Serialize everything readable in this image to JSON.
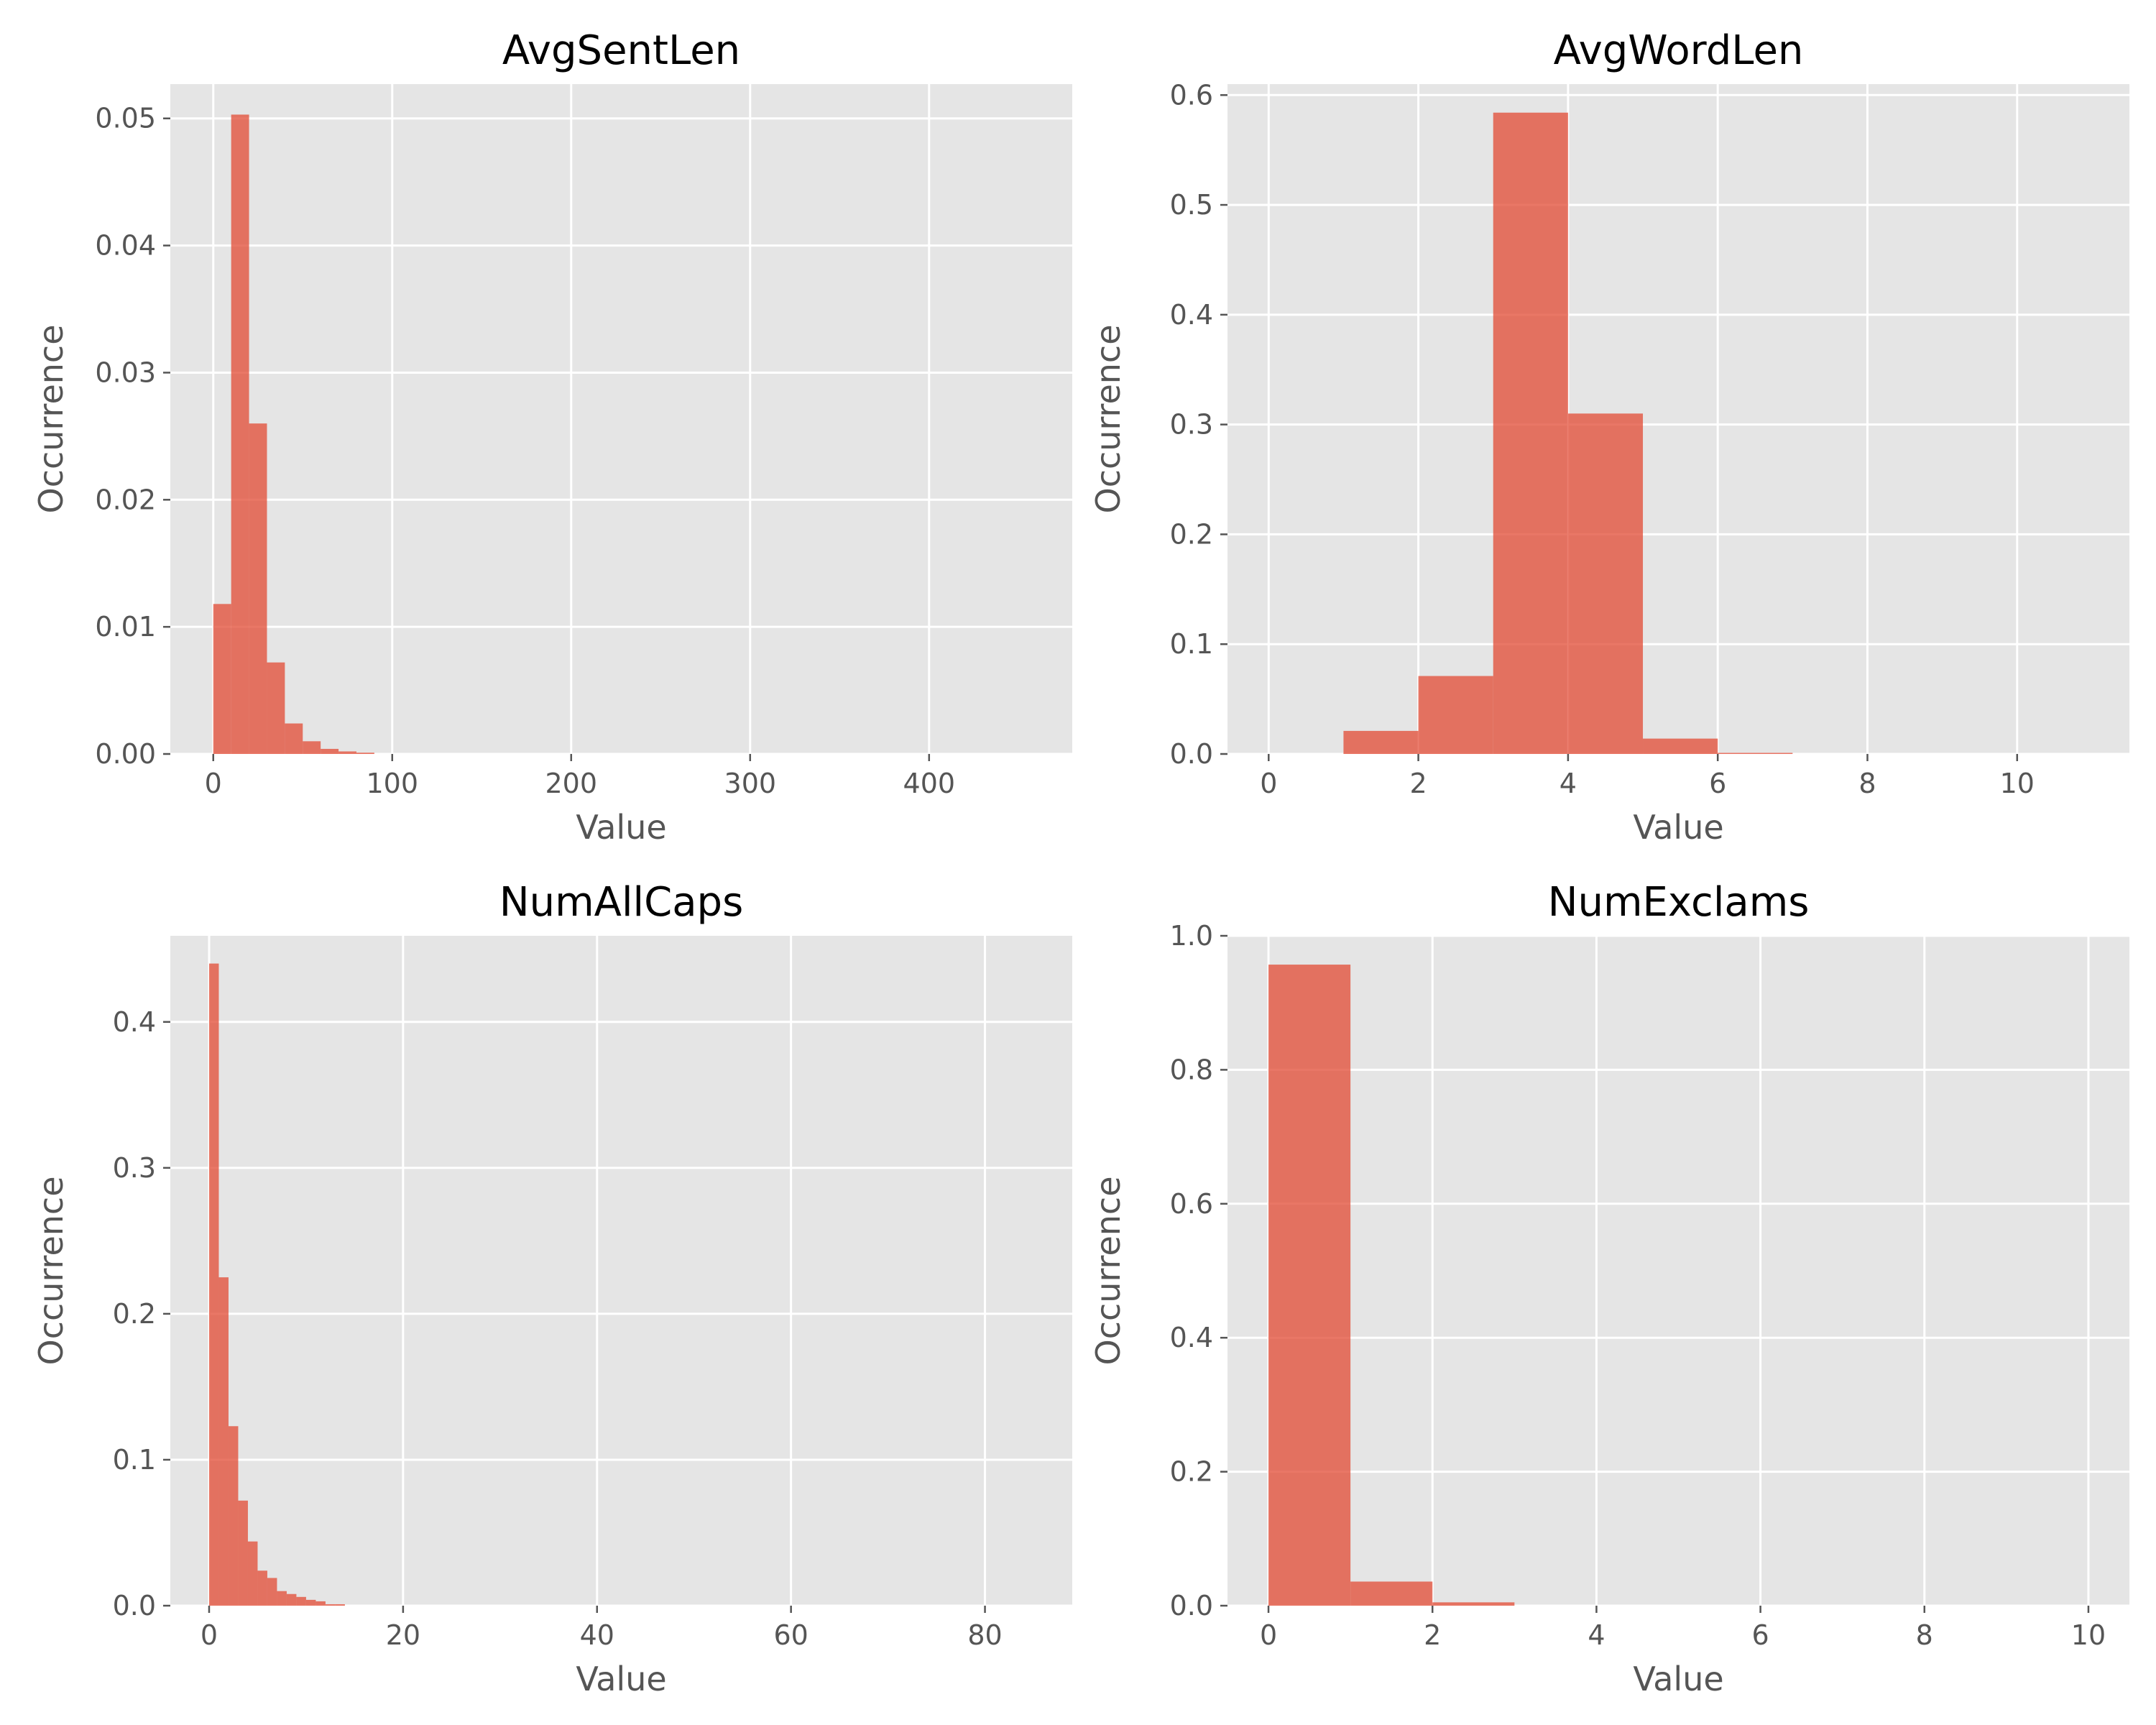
{
  "chart_data": [
    {
      "type": "bar",
      "title": "AvgSentLen",
      "xlabel": "Value",
      "ylabel": "Occurrence",
      "xlim": [
        -24,
        480
      ],
      "ylim": [
        0,
        0.0527
      ],
      "xticks": [
        0,
        100,
        200,
        300,
        400
      ],
      "xtick_labels": [
        "0",
        "100",
        "200",
        "300",
        "400"
      ],
      "yticks": [
        0,
        0.01,
        0.02,
        0.03,
        0.04,
        0.05
      ],
      "ytick_labels": [
        "0.00",
        "0.01",
        "0.02",
        "0.03",
        "0.04",
        "0.05"
      ],
      "grid": true,
      "bins": [
        {
          "x0": 0,
          "x1": 10,
          "value": 0.0118
        },
        {
          "x0": 10,
          "x1": 20,
          "value": 0.0503
        },
        {
          "x0": 20,
          "x1": 30,
          "value": 0.026
        },
        {
          "x0": 30,
          "x1": 40,
          "value": 0.0072
        },
        {
          "x0": 40,
          "x1": 50,
          "value": 0.0024
        },
        {
          "x0": 50,
          "x1": 60,
          "value": 0.001
        },
        {
          "x0": 60,
          "x1": 70,
          "value": 0.0004
        },
        {
          "x0": 70,
          "x1": 80,
          "value": 0.0002
        },
        {
          "x0": 80,
          "x1": 90,
          "value": 0.0001
        }
      ]
    },
    {
      "type": "bar",
      "title": "AvgWordLen",
      "xlabel": "Value",
      "ylabel": "Occurrence",
      "xlim": [
        -0.55,
        11.5
      ],
      "ylim": [
        0,
        0.61
      ],
      "xticks": [
        0,
        2,
        4,
        6,
        8,
        10
      ],
      "xtick_labels": [
        "0",
        "2",
        "4",
        "6",
        "8",
        "10"
      ],
      "yticks": [
        0,
        0.1,
        0.2,
        0.3,
        0.4,
        0.5,
        0.6
      ],
      "ytick_labels": [
        "0.0",
        "0.1",
        "0.2",
        "0.3",
        "0.4",
        "0.5",
        "0.6"
      ],
      "grid": true,
      "bins": [
        {
          "x0": 1,
          "x1": 2,
          "value": 0.021
        },
        {
          "x0": 2,
          "x1": 3,
          "value": 0.071
        },
        {
          "x0": 3,
          "x1": 4,
          "value": 0.584
        },
        {
          "x0": 4,
          "x1": 5,
          "value": 0.31
        },
        {
          "x0": 5,
          "x1": 6,
          "value": 0.014
        },
        {
          "x0": 6,
          "x1": 7,
          "value": 0.001
        }
      ]
    },
    {
      "type": "bar",
      "title": "NumAllCaps",
      "xlabel": "Value",
      "ylabel": "Occurrence",
      "xlim": [
        -4,
        89
      ],
      "ylim": [
        0,
        0.459
      ],
      "xticks": [
        0,
        20,
        40,
        60,
        80
      ],
      "xtick_labels": [
        "0",
        "20",
        "40",
        "60",
        "80"
      ],
      "yticks": [
        0,
        0.1,
        0.2,
        0.3,
        0.4
      ],
      "ytick_labels": [
        "0.0",
        "0.1",
        "0.2",
        "0.3",
        "0.4"
      ],
      "grid": true,
      "bins": [
        {
          "x0": 0,
          "x1": 1,
          "value": 0.44
        },
        {
          "x0": 1,
          "x1": 2,
          "value": 0.225
        },
        {
          "x0": 2,
          "x1": 3,
          "value": 0.123
        },
        {
          "x0": 3,
          "x1": 4,
          "value": 0.072
        },
        {
          "x0": 4,
          "x1": 5,
          "value": 0.044
        },
        {
          "x0": 5,
          "x1": 6,
          "value": 0.024
        },
        {
          "x0": 6,
          "x1": 7,
          "value": 0.019
        },
        {
          "x0": 7,
          "x1": 8,
          "value": 0.01
        },
        {
          "x0": 8,
          "x1": 9,
          "value": 0.008
        },
        {
          "x0": 9,
          "x1": 10,
          "value": 0.006
        },
        {
          "x0": 10,
          "x1": 11,
          "value": 0.004
        },
        {
          "x0": 11,
          "x1": 12,
          "value": 0.003
        },
        {
          "x0": 12,
          "x1": 13,
          "value": 0.001
        },
        {
          "x0": 13,
          "x1": 14,
          "value": 0.001
        }
      ]
    },
    {
      "type": "bar",
      "title": "NumExclams",
      "xlabel": "Value",
      "ylabel": "Occurrence",
      "xlim": [
        -0.5,
        10.5
      ],
      "ylim": [
        0,
        1.0
      ],
      "xticks": [
        0,
        2,
        4,
        6,
        8,
        10
      ],
      "xtick_labels": [
        "0",
        "2",
        "4",
        "6",
        "8",
        "10"
      ],
      "yticks": [
        0,
        0.2,
        0.4,
        0.6,
        0.8,
        1.0
      ],
      "ytick_labels": [
        "0.0",
        "0.2",
        "0.4",
        "0.6",
        "0.8",
        "1.0"
      ],
      "grid": true,
      "bins": [
        {
          "x0": 0,
          "x1": 1,
          "value": 0.957
        },
        {
          "x0": 1,
          "x1": 2,
          "value": 0.036
        },
        {
          "x0": 2,
          "x1": 3,
          "value": 0.005
        }
      ]
    }
  ]
}
